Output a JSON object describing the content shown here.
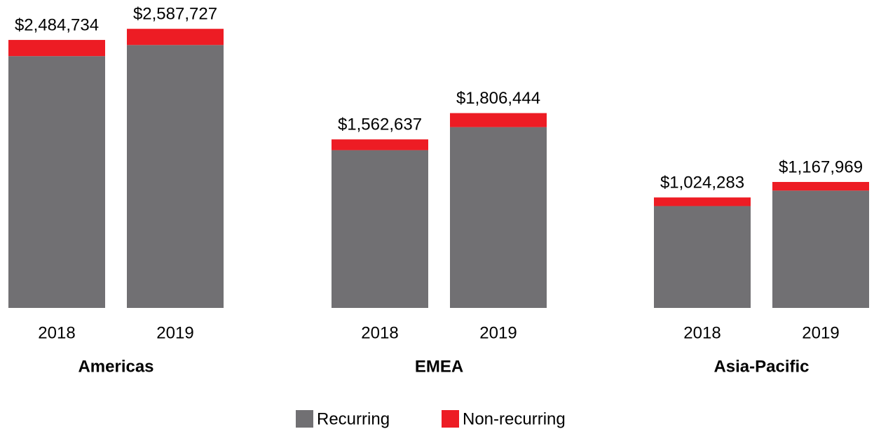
{
  "chart_data": {
    "type": "stacked-bar",
    "groups": [
      {
        "name": "Americas",
        "categories": [
          "2018",
          "2019"
        ]
      },
      {
        "name": "EMEA",
        "categories": [
          "2018",
          "2019"
        ]
      },
      {
        "name": "Asia-Pacific",
        "categories": [
          "2018",
          "2019"
        ]
      }
    ],
    "series": [
      {
        "name": "Recurring",
        "color": "#717073",
        "values": [
          2334734,
          2437727,
          1462637,
          1676444,
          944283,
          1087969
        ]
      },
      {
        "name": "Non-recurring",
        "color": "#ed1c24",
        "values": [
          150000,
          150000,
          100000,
          130000,
          80000,
          80000
        ]
      }
    ],
    "totals": [
      2484734,
      2587727,
      1562637,
      1806444,
      1024283,
      1167969
    ],
    "total_labels": [
      "$2,484,734",
      "$2,587,727",
      "$1,562,637",
      "$1,806,444",
      "$1,024,283",
      "$1,167,969"
    ],
    "ylim": [
      0,
      2855000
    ]
  }
}
